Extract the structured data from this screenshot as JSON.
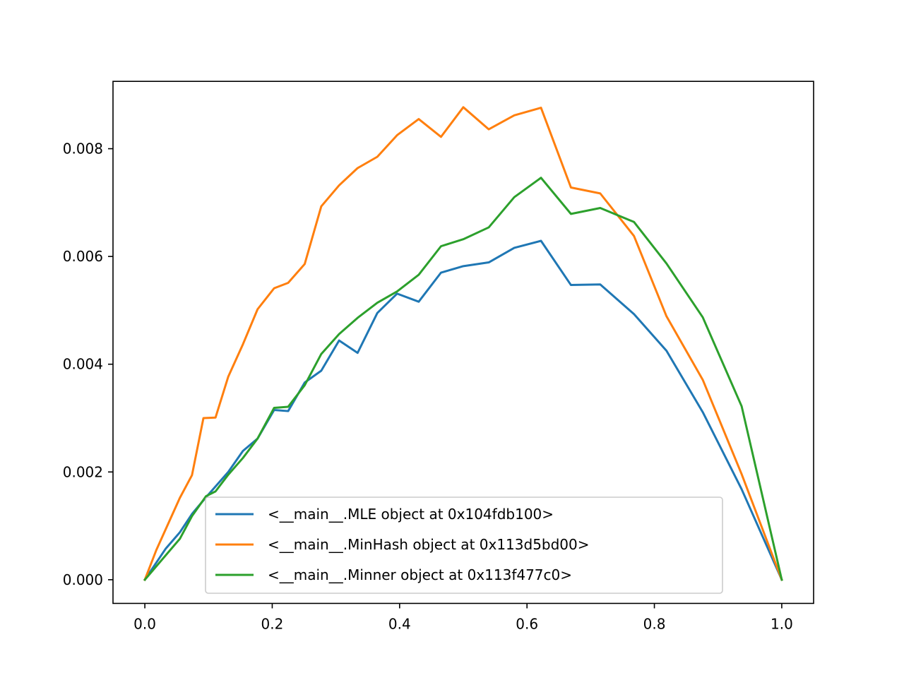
{
  "chart_data": {
    "type": "line",
    "title": "",
    "xlabel": "",
    "ylabel": "",
    "xlim": [
      -0.05,
      1.05
    ],
    "ylim": [
      -0.00044,
      0.00925
    ],
    "grid": false,
    "legend_position": "lower center",
    "x_ticks": [
      "0.0",
      "0.2",
      "0.4",
      "0.6",
      "0.8",
      "1.0"
    ],
    "y_ticks": [
      "0.000",
      "0.002",
      "0.004",
      "0.006",
      "0.008"
    ],
    "series": [
      {
        "name": "<__main__.MLE object at 0x104fdb100>",
        "color": "#1f77b4",
        "points": [
          [
            0.0,
            0.0
          ],
          [
            0.033,
            0.00058
          ],
          [
            0.055,
            0.00088
          ],
          [
            0.074,
            0.00122
          ],
          [
            0.096,
            0.00153
          ],
          [
            0.131,
            0.002
          ],
          [
            0.154,
            0.00239
          ],
          [
            0.177,
            0.00262
          ],
          [
            0.203,
            0.00315
          ],
          [
            0.225,
            0.00313
          ],
          [
            0.251,
            0.00366
          ],
          [
            0.277,
            0.00388
          ],
          [
            0.305,
            0.00444
          ],
          [
            0.334,
            0.00421
          ],
          [
            0.365,
            0.00495
          ],
          [
            0.396,
            0.00531
          ],
          [
            0.43,
            0.00516
          ],
          [
            0.465,
            0.0057
          ],
          [
            0.5,
            0.00582
          ],
          [
            0.54,
            0.00589
          ],
          [
            0.58,
            0.00616
          ],
          [
            0.622,
            0.00629
          ],
          [
            0.669,
            0.00547
          ],
          [
            0.715,
            0.00548
          ],
          [
            0.768,
            0.00493
          ],
          [
            0.819,
            0.00425
          ],
          [
            0.876,
            0.00311
          ],
          [
            0.937,
            0.00168
          ],
          [
            1.0,
            0.0
          ]
        ]
      },
      {
        "name": "<__main__.MinHash object at 0x113d5bd00>",
        "color": "#ff7f0e",
        "points": [
          [
            0.0,
            0.0
          ],
          [
            0.018,
            0.00055
          ],
          [
            0.055,
            0.00152
          ],
          [
            0.074,
            0.00194
          ],
          [
            0.092,
            0.003
          ],
          [
            0.111,
            0.00301
          ],
          [
            0.131,
            0.00377
          ],
          [
            0.154,
            0.00437
          ],
          [
            0.177,
            0.00502
          ],
          [
            0.203,
            0.00541
          ],
          [
            0.225,
            0.00551
          ],
          [
            0.251,
            0.00586
          ],
          [
            0.277,
            0.00693
          ],
          [
            0.305,
            0.00732
          ],
          [
            0.334,
            0.00764
          ],
          [
            0.365,
            0.00785
          ],
          [
            0.396,
            0.00825
          ],
          [
            0.43,
            0.00855
          ],
          [
            0.465,
            0.00822
          ],
          [
            0.5,
            0.00877
          ],
          [
            0.54,
            0.00836
          ],
          [
            0.58,
            0.00862
          ],
          [
            0.622,
            0.00876
          ],
          [
            0.669,
            0.00728
          ],
          [
            0.715,
            0.00717
          ],
          [
            0.768,
            0.00638
          ],
          [
            0.819,
            0.00489
          ],
          [
            0.876,
            0.00371
          ],
          [
            0.937,
            0.00196
          ],
          [
            1.0,
            0.0
          ]
        ]
      },
      {
        "name": "<__main__.Minner object at 0x113f477c0>",
        "color": "#2ca02c",
        "points": [
          [
            0.0,
            0.0
          ],
          [
            0.055,
            0.00076
          ],
          [
            0.074,
            0.00118
          ],
          [
            0.096,
            0.00155
          ],
          [
            0.111,
            0.00164
          ],
          [
            0.131,
            0.00195
          ],
          [
            0.154,
            0.00226
          ],
          [
            0.177,
            0.00262
          ],
          [
            0.203,
            0.00319
          ],
          [
            0.225,
            0.00321
          ],
          [
            0.251,
            0.00361
          ],
          [
            0.277,
            0.00419
          ],
          [
            0.305,
            0.00456
          ],
          [
            0.334,
            0.00486
          ],
          [
            0.365,
            0.00514
          ],
          [
            0.396,
            0.00535
          ],
          [
            0.43,
            0.00566
          ],
          [
            0.465,
            0.00619
          ],
          [
            0.5,
            0.00632
          ],
          [
            0.54,
            0.00654
          ],
          [
            0.58,
            0.0071
          ],
          [
            0.622,
            0.00746
          ],
          [
            0.669,
            0.00679
          ],
          [
            0.715,
            0.0069
          ],
          [
            0.768,
            0.00664
          ],
          [
            0.819,
            0.00587
          ],
          [
            0.876,
            0.00487
          ],
          [
            0.937,
            0.00322
          ],
          [
            1.0,
            0.0
          ]
        ]
      }
    ]
  }
}
